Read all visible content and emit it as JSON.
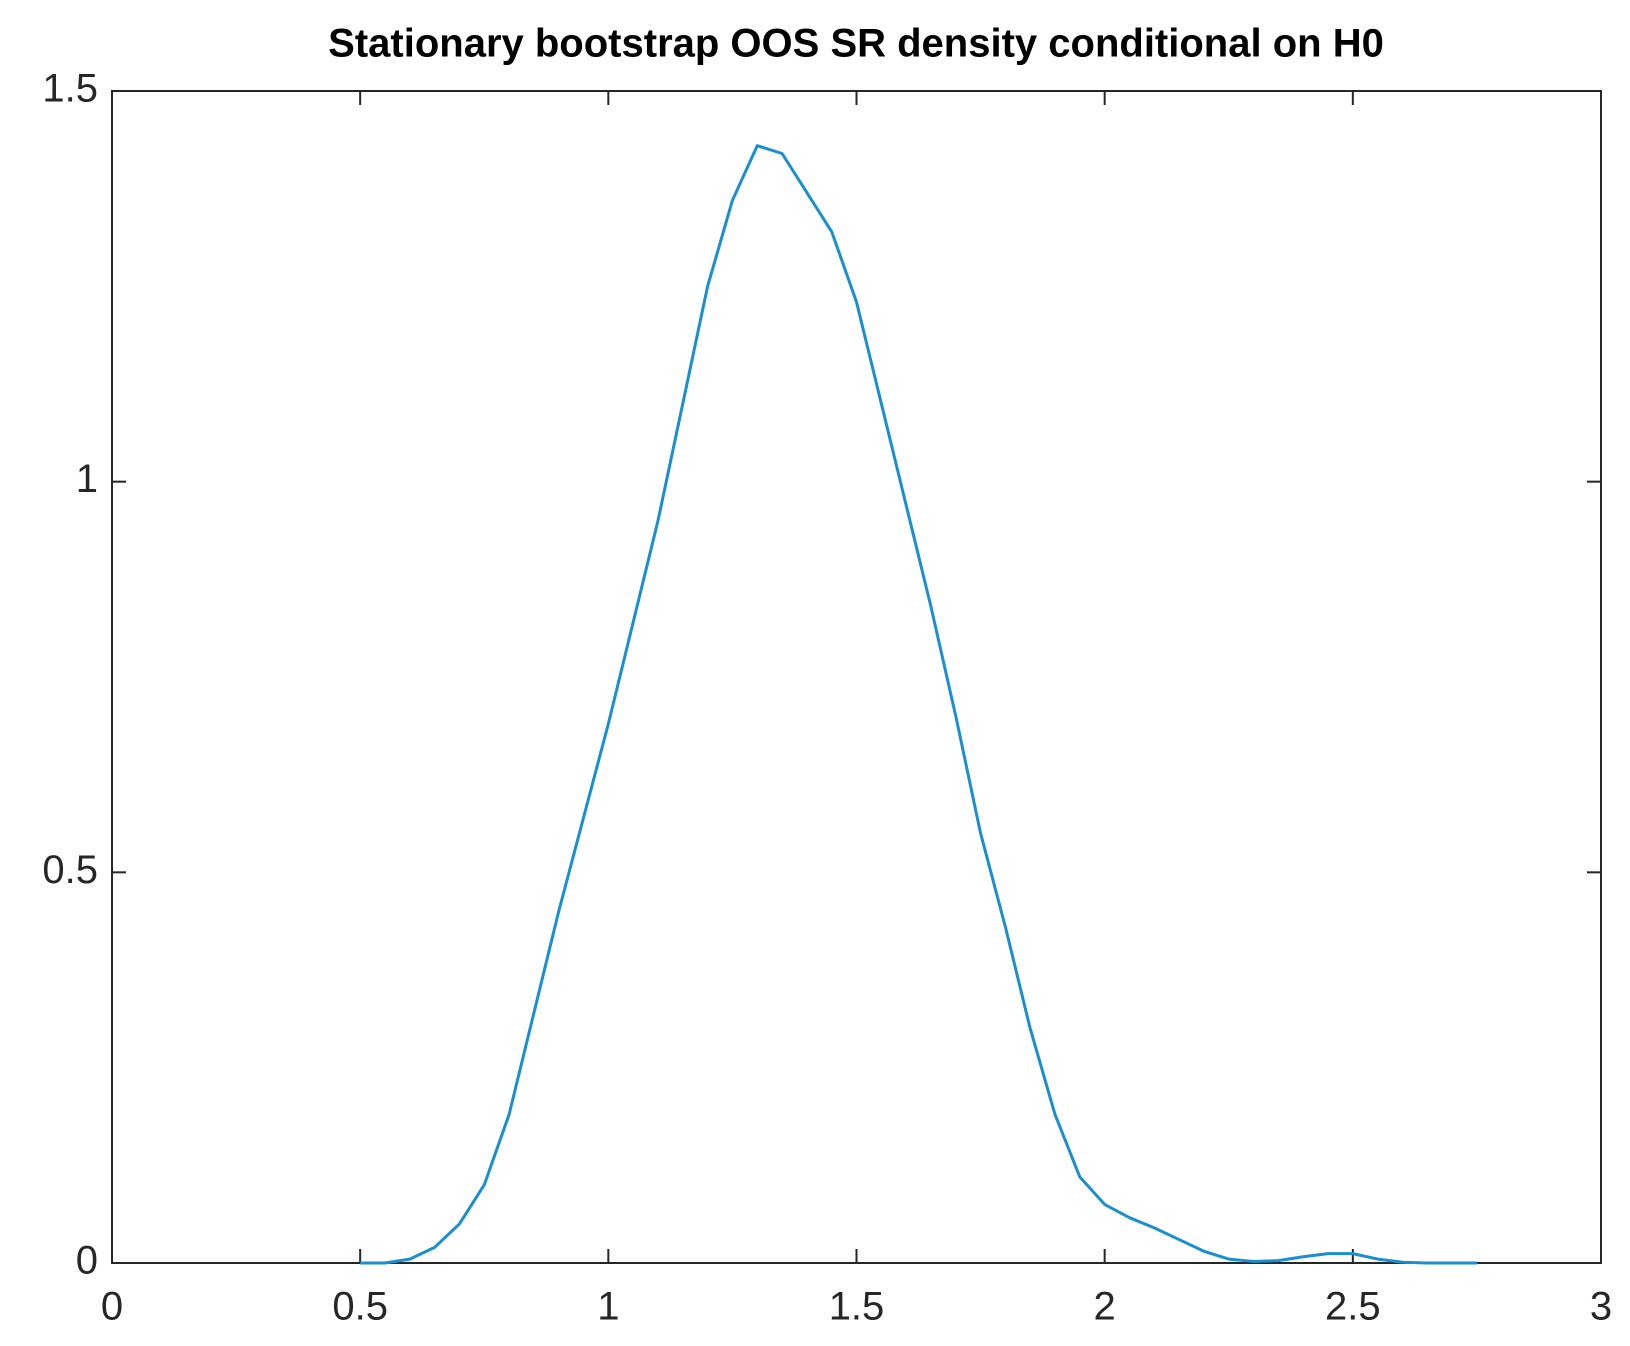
{
  "chart_data": {
    "type": "line",
    "title": "Stationary bootstrap OOS SR density conditional on H0",
    "x": [
      0.5,
      0.55,
      0.6,
      0.65,
      0.7,
      0.75,
      0.8,
      0.85,
      0.9,
      0.95,
      1.0,
      1.05,
      1.1,
      1.15,
      1.2,
      1.25,
      1.3,
      1.35,
      1.4,
      1.45,
      1.5,
      1.55,
      1.6,
      1.65,
      1.7,
      1.75,
      1.8,
      1.85,
      1.9,
      1.95,
      2.0,
      2.05,
      2.1,
      2.15,
      2.2,
      2.25,
      2.3,
      2.35,
      2.4,
      2.45,
      2.5,
      2.55,
      2.6,
      2.65,
      2.7,
      2.75
    ],
    "series": [
      {
        "color": "#1a8fd0",
        "values": [
          0,
          0,
          0.005,
          0.02,
          0.05,
          0.1,
          0.19,
          0.32,
          0.45,
          0.57,
          0.69,
          0.82,
          0.95,
          1.1,
          1.25,
          1.36,
          1.43,
          1.42,
          1.37,
          1.32,
          1.23,
          1.1,
          0.97,
          0.84,
          0.7,
          0.55,
          0.43,
          0.3,
          0.19,
          0.11,
          0.075,
          0.058,
          0.045,
          0.03,
          0.015,
          0.005,
          0.002,
          0.003,
          0.008,
          0.012,
          0.012,
          0.005,
          0.001,
          0,
          0,
          0
        ]
      }
    ],
    "xlim": [
      0,
      3
    ],
    "ylim": [
      0,
      1.5
    ],
    "xticks": [
      0,
      0.5,
      1,
      1.5,
      2,
      2.5,
      3
    ],
    "yticks": [
      0,
      0.5,
      1,
      1.5
    ]
  }
}
